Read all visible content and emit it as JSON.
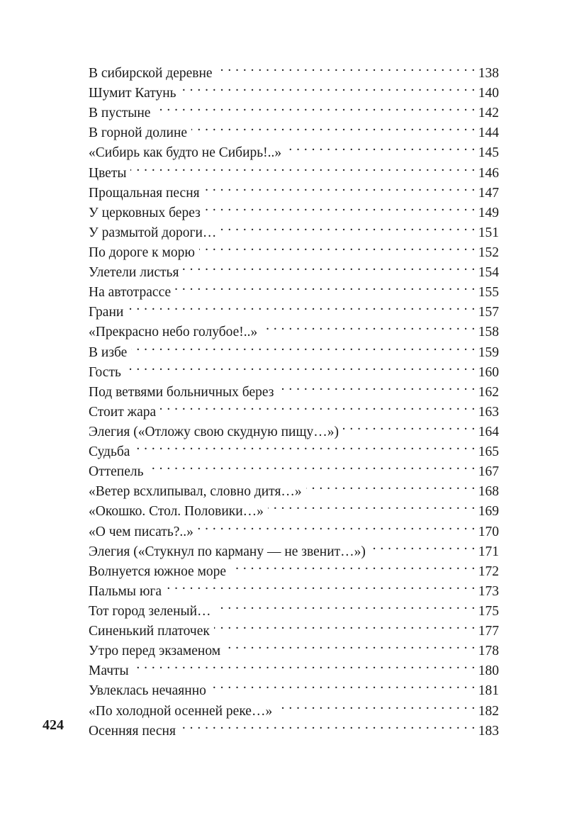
{
  "folio": "424",
  "entries": [
    {
      "title": "В сибирской деревне",
      "page": "138"
    },
    {
      "title": "Шумит Катунь",
      "page": "140"
    },
    {
      "title": "В пустыне",
      "page": "142"
    },
    {
      "title": "В горной долине",
      "page": "144"
    },
    {
      "title": "«Сибирь как будто не Сибирь!..»",
      "page": "145"
    },
    {
      "title": "Цветы",
      "page": "146"
    },
    {
      "title": "Прощальная песня",
      "page": "147"
    },
    {
      "title": "У церковных берез",
      "page": "149"
    },
    {
      "title": "У размытой дороги…",
      "page": "151"
    },
    {
      "title": "По дороге к морю",
      "page": "152"
    },
    {
      "title": "Улетели листья",
      "page": "154"
    },
    {
      "title": "На автотрассе",
      "page": "155"
    },
    {
      "title": "Грани",
      "page": "157"
    },
    {
      "title": "«Прекрасно небо голубое!..»",
      "page": "158"
    },
    {
      "title": "В избе",
      "page": "159"
    },
    {
      "title": "Гость",
      "page": "160"
    },
    {
      "title": "Под ветвями больничных берез",
      "page": "162"
    },
    {
      "title": "Стоит жара",
      "page": "163"
    },
    {
      "title": "Элегия («Отложу свою скудную пищу…»)",
      "page": "164"
    },
    {
      "title": "Судьба",
      "page": "165"
    },
    {
      "title": "Оттепель",
      "page": "167"
    },
    {
      "title": "«Ветер всхлипывал, словно дитя…»",
      "page": "168"
    },
    {
      "title": "«Окошко. Стол. Половики…»",
      "page": "169"
    },
    {
      "title": "«О чем писать?..»",
      "page": "170"
    },
    {
      "title": "Элегия («Стукнул по карману — не звенит…»)",
      "page": "171"
    },
    {
      "title": "Волнуется южное море",
      "page": "172"
    },
    {
      "title": "Пальмы юга",
      "page": "173"
    },
    {
      "title": "Тот город зеленый…",
      "page": "175"
    },
    {
      "title": "Синенький платочек",
      "page": "177"
    },
    {
      "title": "Утро перед экзаменом",
      "page": "178"
    },
    {
      "title": "Мачты",
      "page": "180"
    },
    {
      "title": "Увлеклась нечаянно",
      "page": "181"
    },
    {
      "title": "«По холодной осенней реке…»",
      "page": "182"
    },
    {
      "title": "Осенняя песня",
      "page": "183"
    }
  ]
}
